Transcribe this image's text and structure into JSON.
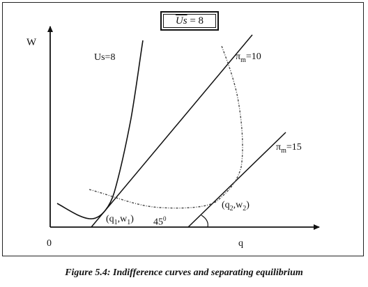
{
  "labels": {
    "y_axis": "W",
    "x_axis": "q",
    "origin": "0",
    "us_curve": "Us=8",
    "pi_m_10_sym": "π",
    "pi_m_10_sub": "m",
    "pi_m_10_val": "=10",
    "pi_m_15_sym": "π",
    "pi_m_15_sub": "m",
    "pi_m_15_val": "=15",
    "point1_open": "(q",
    "point1_sub_q": "1",
    "point1_mid": ",w",
    "point1_sub_w": "1",
    "point1_close": ")",
    "point2_open": "(q",
    "point2_sub_q": "2",
    "point2_mid": ",w",
    "point2_sub_w": "2",
    "point2_close": ")",
    "angle_value": "45",
    "angle_degree": "0"
  },
  "boxed_equation": {
    "symbol": "Us",
    "value": " = 8"
  },
  "caption": "Figure 5.4: Indifference curves and separating equilibrium"
}
